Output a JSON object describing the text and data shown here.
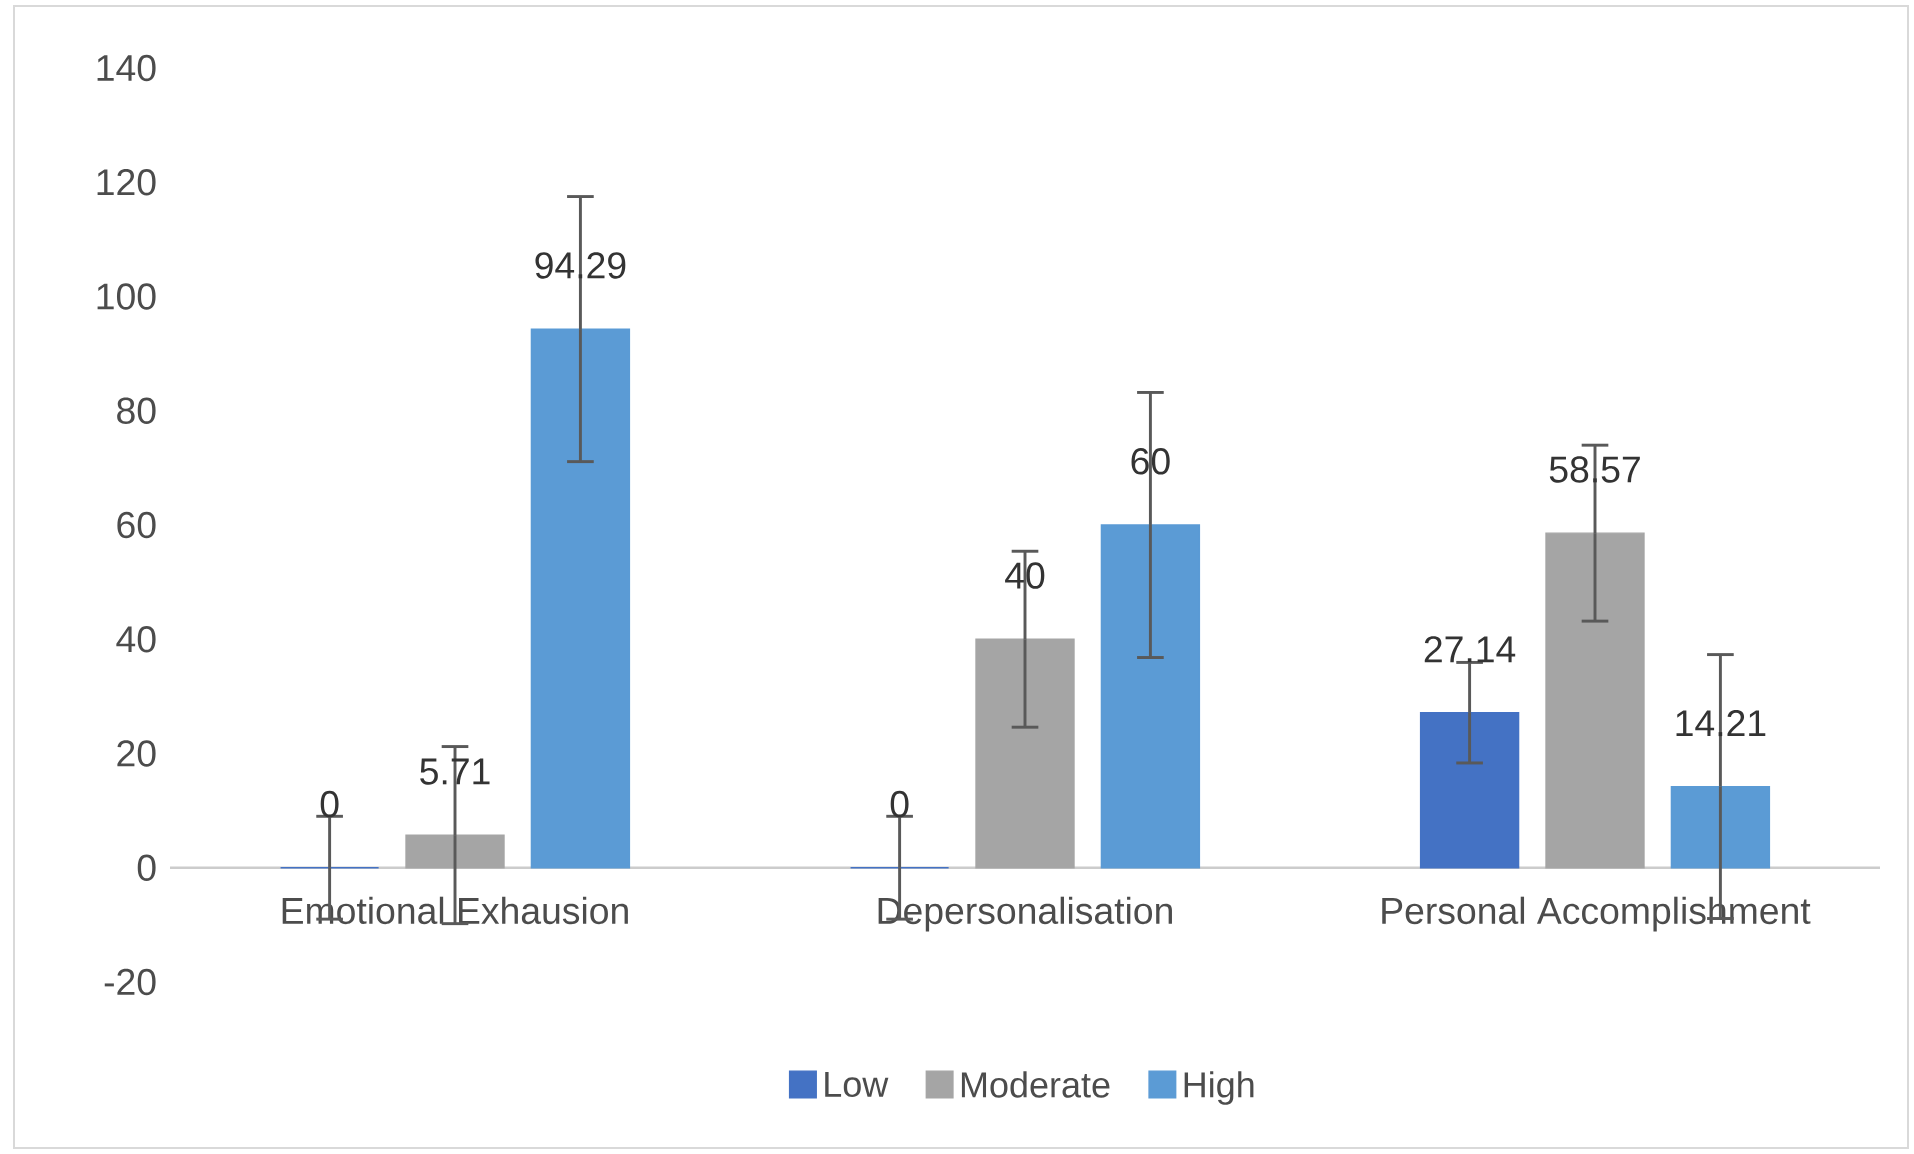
{
  "chart_data": {
    "type": "bar",
    "categories": [
      "Emotional Exhausion",
      "Depersonalisation",
      "Personal Accomplishment"
    ],
    "series": [
      {
        "name": "Low",
        "color": "#4472c4",
        "values": [
          0,
          0,
          27.14
        ],
        "errors": [
          9,
          9,
          8.8
        ]
      },
      {
        "name": "Moderate",
        "color": "#a5a5a5",
        "values": [
          5.71,
          40,
          58.57
        ],
        "errors": [
          15.5,
          15.4,
          15.4
        ]
      },
      {
        "name": "High",
        "color": "#5b9bd5",
        "values": [
          94.29,
          60,
          14.21
        ],
        "errors": [
          23.2,
          23.2,
          23.1
        ]
      }
    ],
    "ylim": [
      -20,
      140
    ],
    "yticks": [
      -20,
      0,
      20,
      40,
      60,
      80,
      100,
      120,
      140
    ],
    "data_labels": true,
    "legend": "bottom",
    "grid": false
  }
}
